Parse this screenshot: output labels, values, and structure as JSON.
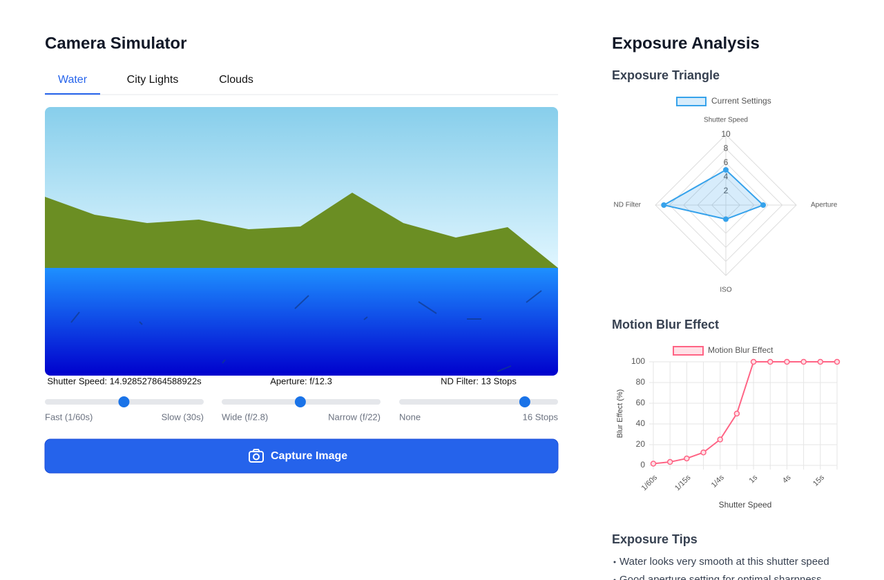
{
  "simulator": {
    "title": "Camera Simulator",
    "tabs": [
      "Water",
      "City Lights",
      "Clouds"
    ],
    "controls": [
      {
        "label": "Shutter Speed: 14.928527864588922s",
        "value": 14.928527864588922,
        "min": 0.016666666666666666,
        "max": 30,
        "min_label": "Fast (1/60s)",
        "max_label": "Slow (30s)"
      },
      {
        "label": "Aperture: f/12.3",
        "value": 12.3,
        "min": 2.8,
        "max": 22,
        "min_label": "Wide (f/2.8)",
        "max_label": "Narrow (f/22)"
      },
      {
        "label": "ND Filter: 13 Stops",
        "value": 13,
        "min": 0,
        "max": 16,
        "min_label": "None",
        "max_label": "16 Stops"
      }
    ],
    "button": "Capture Image"
  },
  "analysis": {
    "title": "Exposure Analysis",
    "triangle_heading": "Exposure Triangle",
    "blur_heading": "Motion Blur Effect",
    "tips_heading": "Exposure Tips",
    "tips": [
      "Water looks very smooth at this shutter speed",
      "Good aperture setting for optimal sharpness"
    ]
  },
  "chart_data": [
    {
      "type": "radar",
      "categories": [
        "Shutter Speed",
        "Aperture",
        "ISO",
        "ND Filter"
      ],
      "series": [
        {
          "name": "Current Settings",
          "color": "#36a2eb",
          "values": [
            5,
            5.3,
            2,
            8.8
          ]
        }
      ],
      "rlim": [
        0,
        10
      ],
      "rticks": [
        2,
        4,
        6,
        8,
        10
      ],
      "grid": true
    },
    {
      "type": "line",
      "x_label": "Shutter Speed",
      "y_label": "Blur Effect (%)",
      "categories": [
        "1/60s",
        null,
        "1/15s",
        null,
        "1/4s",
        null,
        "1s",
        null,
        "4s",
        null,
        "15s",
        null
      ],
      "series": [
        {
          "name": "Motion Blur Effect",
          "color": "#ff6384",
          "values": [
            1.7,
            3.3,
            6.7,
            12.5,
            25,
            50,
            100,
            100,
            100,
            100,
            100,
            100
          ]
        }
      ],
      "ylim": [
        0,
        100
      ],
      "yticks": [
        0,
        20,
        40,
        60,
        80,
        100
      ],
      "grid": true
    }
  ]
}
